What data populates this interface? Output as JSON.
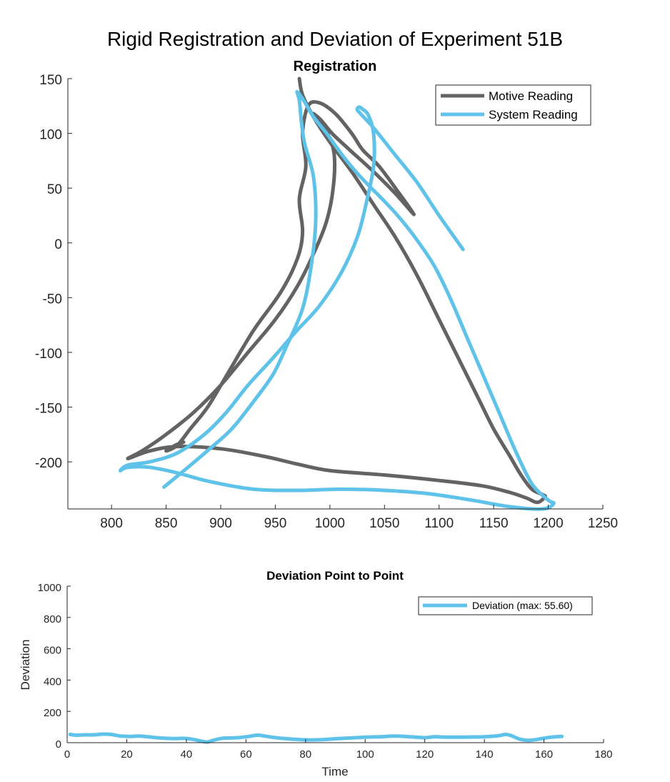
{
  "figure_title": "Rigid Registration and Deviation of Experiment 51B",
  "colors": {
    "motive": "#636363",
    "system": "#5fc2e8",
    "axis": "#262626"
  },
  "chart_data": [
    {
      "type": "line",
      "title": "Registration",
      "xlabel": "",
      "ylabel": "",
      "xlim": [
        760,
        1250
      ],
      "ylim": [
        -243,
        150
      ],
      "xticks": [
        "800",
        "850",
        "900",
        "950",
        "1000",
        "1050",
        "1100",
        "1150",
        "1200",
        "1250"
      ],
      "yticks": [
        "150",
        "100",
        "50",
        "0",
        "-50",
        "-100",
        "-150",
        "-200"
      ],
      "grid": false,
      "legend_position": "top-right",
      "series": [
        {
          "name": "Motive Reading",
          "color": "#636363",
          "x": [
            866,
            858,
            850,
            860,
            872,
            888,
            906,
            930,
            955,
            970,
            975,
            972,
            978,
            975,
            980,
            990,
            1005,
            1020,
            1030,
            1045,
            1060,
            1077,
            1060,
            1040,
            1018,
            1002,
            992,
            985,
            990,
            998,
            1004,
            1003,
            997,
            985,
            970,
            950,
            925,
            900,
            875,
            850,
            828,
            815,
            835,
            860,
            900,
            940,
            970,
            1000,
            1050,
            1100,
            1140,
            1165,
            1180,
            1190,
            1197,
            1195,
            1185,
            1175,
            1165,
            1150,
            1135,
            1120,
            1100,
            1080,
            1060,
            1040,
            1020,
            1000,
            985,
            975,
            972
          ],
          "y": [
            -182,
            -185,
            -190,
            -185,
            -170,
            -150,
            -120,
            -80,
            -45,
            -15,
            10,
            40,
            70,
            100,
            125,
            128,
            118,
            100,
            85,
            70,
            50,
            26,
            45,
            65,
            85,
            100,
            112,
            118,
            113,
            100,
            80,
            50,
            20,
            -10,
            -40,
            -70,
            -100,
            -130,
            -155,
            -175,
            -190,
            -197,
            -190,
            -186,
            -188,
            -195,
            -202,
            -208,
            -212,
            -217,
            -222,
            -228,
            -233,
            -237,
            -232,
            -230,
            -225,
            -212,
            -195,
            -170,
            -140,
            -110,
            -70,
            -30,
            5,
            35,
            65,
            92,
            115,
            135,
            150
          ]
        },
        {
          "name": "System Reading",
          "color": "#5fc2e8",
          "x": [
            848,
            870,
            890,
            910,
            930,
            948,
            960,
            975,
            983,
            987,
            985,
            977,
            974,
            972,
            970,
            976,
            985,
            997,
            1010,
            1022,
            1035,
            1048,
            1062,
            1078,
            1095,
            1110,
            1125,
            1140,
            1155,
            1170,
            1185,
            1200,
            1205,
            1195,
            1165,
            1130,
            1090,
            1050,
            1010,
            970,
            930,
            890,
            860,
            835,
            815,
            808,
            815,
            835,
            860,
            885,
            905,
            925,
            948,
            968,
            990,
            1010,
            1025,
            1033,
            1040,
            1040,
            1035,
            1030,
            1027,
            1025,
            1028,
            1040,
            1060,
            1080,
            1100,
            1122
          ],
          "y": [
            -223,
            -205,
            -188,
            -170,
            -145,
            -120,
            -95,
            -60,
            -20,
            20,
            60,
            90,
            110,
            130,
            138,
            130,
            115,
            100,
            82,
            67,
            53,
            40,
            25,
            5,
            -20,
            -50,
            -85,
            -120,
            -155,
            -190,
            -220,
            -235,
            -238,
            -243,
            -241,
            -235,
            -229,
            -226,
            -225,
            -226,
            -225,
            -218,
            -210,
            -205,
            -205,
            -208,
            -203,
            -200,
            -192,
            -175,
            -155,
            -130,
            -105,
            -82,
            -58,
            -28,
            5,
            35,
            70,
            100,
            117,
            122,
            124,
            122,
            118,
            105,
            80,
            55,
            25,
            -6
          ]
        }
      ]
    },
    {
      "type": "line",
      "title": "Deviation Point to Point",
      "xlabel": "Time",
      "ylabel": "Deviation",
      "xlim": [
        0,
        180
      ],
      "ylim": [
        0,
        1000
      ],
      "xticks": [
        "0",
        "20",
        "40",
        "60",
        "80",
        "100",
        "120",
        "140",
        "160",
        "180"
      ],
      "yticks": [
        "1000",
        "800",
        "600",
        "400",
        "200",
        "0"
      ],
      "grid": false,
      "legend_position": "top-right",
      "series": [
        {
          "name": "Deviation (max: 55.60)",
          "color": "#5fc2e8",
          "x": [
            1,
            3,
            6,
            9,
            12,
            15,
            18,
            21,
            24,
            27,
            30,
            33,
            36,
            39,
            42,
            45,
            47,
            49,
            52,
            55,
            58,
            61,
            64,
            67,
            70,
            74,
            78,
            82,
            86,
            90,
            95,
            100,
            105,
            110,
            115,
            120,
            123,
            126,
            130,
            135,
            140,
            145,
            147,
            149,
            152,
            155,
            158,
            161,
            164,
            166
          ],
          "y": [
            53,
            48,
            50,
            50,
            55,
            52,
            42,
            40,
            42,
            38,
            32,
            28,
            26,
            28,
            22,
            10,
            4,
            15,
            28,
            30,
            33,
            40,
            48,
            40,
            32,
            25,
            20,
            18,
            20,
            25,
            30,
            35,
            38,
            42,
            38,
            32,
            38,
            36,
            35,
            36,
            38,
            45,
            53,
            45,
            22,
            15,
            22,
            32,
            38,
            40
          ]
        }
      ]
    }
  ]
}
